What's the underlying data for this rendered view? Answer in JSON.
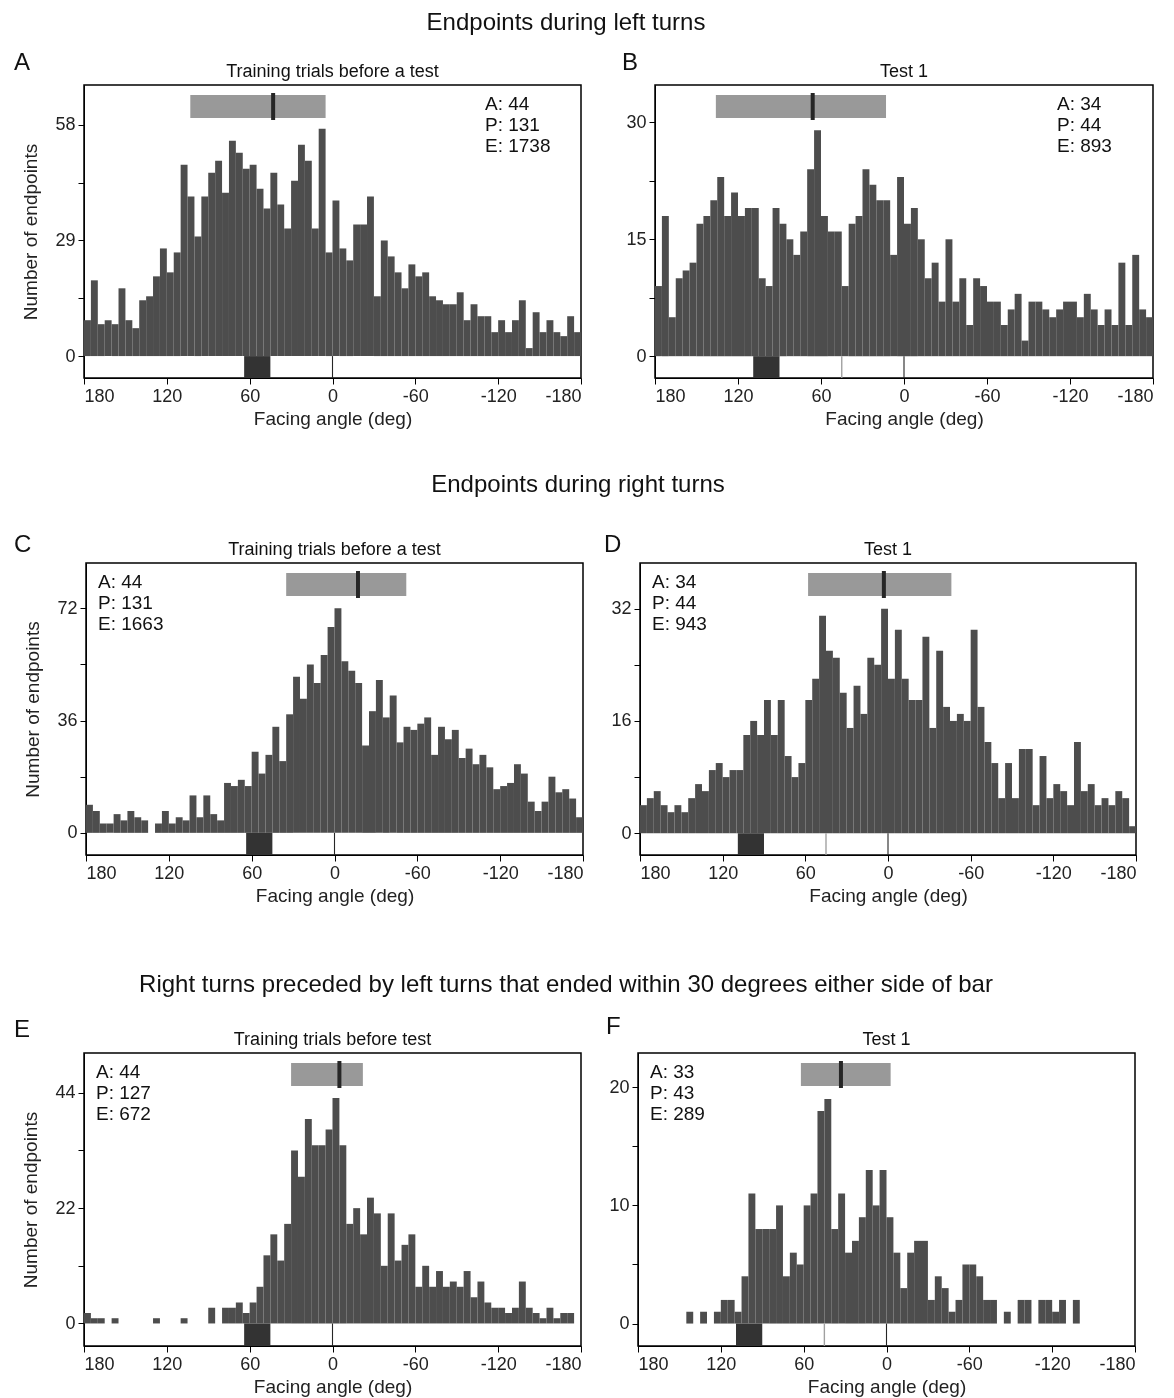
{
  "chart_data": [
    {
      "type": "histogram",
      "title": "Training trials before a test",
      "xlabel": "Facing angle (deg)",
      "ylabel": "Number of endpoints",
      "color": "#4d4d4d",
      "xlim": [
        180,
        -180
      ],
      "xticks": [
        180,
        120,
        60,
        0,
        -60,
        -120,
        -180
      ],
      "ylim": [
        -5.5,
        68
      ],
      "yticks": [
        0,
        {
          "value": 14.5,
          "label": null
        },
        29,
        {
          "value": 43.5,
          "label": null
        },
        58
      ],
      "bins": [
        180,
        175,
        170,
        165,
        160,
        155,
        150,
        145,
        140,
        135,
        130,
        125,
        120,
        115,
        110,
        105,
        100,
        95,
        90,
        85,
        80,
        75,
        70,
        65,
        60,
        55,
        50,
        45,
        40,
        35,
        30,
        25,
        20,
        15,
        10,
        5,
        0,
        -5,
        -10,
        -15,
        -20,
        -25,
        -30,
        -35,
        -40,
        -45,
        -50,
        -55,
        -60,
        -65,
        -70,
        -75,
        -80,
        -85,
        -90,
        -95,
        -100,
        -105,
        -110,
        -115,
        -120,
        -125,
        -130,
        -135,
        -140,
        -145,
        -150,
        -155,
        -160,
        -165,
        -170,
        -175,
        -180
      ],
      "values": [
        9,
        19,
        8,
        9,
        8,
        17,
        9,
        7,
        14,
        15,
        20,
        27,
        21,
        26,
        48,
        40,
        30,
        40,
        46,
        49,
        41,
        54,
        51,
        47,
        48,
        42,
        37,
        46,
        38,
        32,
        44,
        53,
        49,
        32,
        57,
        26,
        39,
        27,
        24,
        33,
        33,
        40,
        15,
        29,
        25,
        21,
        17,
        23,
        20,
        21,
        15,
        14,
        13,
        13,
        16,
        9,
        13,
        10,
        10,
        6,
        9,
        6,
        9,
        14,
        2,
        11,
        6,
        9,
        6,
        5,
        10,
        6
      ],
      "bands": [
        {
          "axis": "x",
          "from": 103,
          "to": 5,
          "color": "#999999"
        },
        {
          "axis": "x",
          "from": 64,
          "to": 45,
          "color": "#333333"
        },
        {
          "axis": "x",
          "from": 0.4,
          "to": -0.4,
          "color": "#262626"
        }
      ],
      "ref_lines": [
        {
          "axis": "x",
          "value": 43,
          "color": "#262626"
        }
      ],
      "annotations": [
        "A",
        "A: 44",
        "P: 131",
        "E: 1738",
        "Endpoints during left turns"
      ]
    },
    {
      "type": "histogram",
      "title": "Test 1",
      "xlabel": "Facing angle (deg)",
      "color": "#4d4d4d",
      "xlim": [
        180,
        -180
      ],
      "xticks": [
        180,
        120,
        60,
        0,
        -60,
        -120,
        -180
      ],
      "ylim": [
        -2.8,
        34.8
      ],
      "yticks": [
        0,
        {
          "value": 7.5,
          "label": null
        },
        15,
        {
          "value": 22.5,
          "label": null
        },
        30
      ],
      "bins": [
        180,
        175,
        170,
        165,
        160,
        155,
        150,
        145,
        140,
        135,
        130,
        125,
        120,
        115,
        110,
        105,
        100,
        95,
        90,
        85,
        80,
        75,
        70,
        65,
        60,
        55,
        50,
        45,
        40,
        35,
        30,
        25,
        20,
        15,
        10,
        5,
        0,
        -5,
        -10,
        -15,
        -20,
        -25,
        -30,
        -35,
        -40,
        -45,
        -50,
        -55,
        -60,
        -65,
        -70,
        -75,
        -80,
        -85,
        -90,
        -95,
        -100,
        -105,
        -110,
        -115,
        -120,
        -125,
        -130,
        -135,
        -140,
        -145,
        -150,
        -155,
        -160,
        -165,
        -170,
        -175,
        -180
      ],
      "values": [
        9,
        18,
        5,
        10,
        11,
        12,
        17,
        18,
        20,
        23,
        18,
        21,
        18,
        19,
        19,
        10,
        9,
        19,
        17,
        15,
        13,
        16,
        24,
        29,
        18,
        16,
        16,
        9,
        17,
        18,
        24,
        22,
        20,
        20,
        13,
        23,
        17,
        19,
        15,
        10,
        12,
        7,
        15,
        7,
        10,
        4,
        10,
        9,
        7,
        7,
        4,
        6,
        8,
        2,
        7,
        7,
        6,
        5,
        6,
        7,
        7,
        5,
        8,
        6,
        4,
        6,
        4,
        12,
        4,
        13,
        6,
        5
      ],
      "bands": [
        {
          "axis": "x",
          "from": 136,
          "to": 13,
          "color": "#999999"
        },
        {
          "axis": "x",
          "from": 109,
          "to": 90,
          "color": "#333333"
        },
        {
          "axis": "x",
          "from": 45.5,
          "to": 44.5,
          "color": "#a0a0a0"
        },
        {
          "axis": "x",
          "from": 0.4,
          "to": -0.4,
          "color": "#262626"
        }
      ],
      "ref_lines": [
        {
          "axis": "x",
          "value": 66,
          "color": "#262626"
        }
      ],
      "annotations": [
        "B",
        "A: 34",
        "P: 44",
        "E: 893"
      ]
    },
    {
      "type": "histogram",
      "title": "Training trials before a test",
      "xlabel": "Facing angle (deg)",
      "ylabel": "Number of endpoints",
      "color": "#4d4d4d",
      "xlim": [
        180,
        -180
      ],
      "xticks": [
        180,
        120,
        60,
        0,
        -60,
        -120,
        -180
      ],
      "ylim": [
        -7.1,
        86.5
      ],
      "yticks": [
        0,
        {
          "value": 18,
          "label": null
        },
        36,
        {
          "value": 54,
          "label": null
        },
        72
      ],
      "bins": [
        180,
        175,
        170,
        165,
        160,
        155,
        150,
        145,
        140,
        135,
        130,
        125,
        120,
        115,
        110,
        105,
        100,
        95,
        90,
        85,
        80,
        75,
        70,
        65,
        60,
        55,
        50,
        45,
        40,
        35,
        30,
        25,
        20,
        15,
        10,
        5,
        0,
        -5,
        -10,
        -15,
        -20,
        -25,
        -30,
        -35,
        -40,
        -45,
        -50,
        -55,
        -60,
        -65,
        -70,
        -75,
        -80,
        -85,
        -90,
        -95,
        -100,
        -105,
        -110,
        -115,
        -120,
        -125,
        -130,
        -135,
        -140,
        -145,
        -150,
        -155,
        -160,
        -165,
        -170,
        -175,
        -180
      ],
      "values": [
        9,
        7,
        3,
        3,
        6,
        4,
        7,
        5,
        4,
        0,
        3,
        7,
        3,
        5,
        4,
        12,
        5,
        12,
        6,
        4,
        16,
        15,
        17,
        15,
        26,
        19,
        25,
        34,
        23,
        38,
        50,
        43,
        54,
        48,
        57,
        66,
        72,
        55,
        52,
        48,
        28,
        39,
        49,
        37,
        44,
        29,
        34,
        33,
        35,
        37,
        25,
        34,
        30,
        33,
        24,
        27,
        22,
        25,
        21,
        14,
        15,
        16,
        22,
        19,
        10,
        7,
        10,
        18,
        13,
        14,
        11,
        5
      ],
      "bands": [
        {
          "axis": "x",
          "from": 35,
          "to": -52,
          "color": "#999999"
        },
        {
          "axis": "x",
          "from": 64,
          "to": 45,
          "color": "#333333"
        },
        {
          "axis": "x",
          "from": 0.4,
          "to": -0.4,
          "color": "#262626"
        }
      ],
      "ref_lines": [
        {
          "axis": "x",
          "value": -17,
          "color": "#262626"
        }
      ],
      "annotations": [
        "C",
        "A: 44",
        "P: 131",
        "E: 1663",
        "Endpoints during right turns"
      ]
    },
    {
      "type": "histogram",
      "title": "Test 1",
      "xlabel": "Facing angle (deg)",
      "color": "#4d4d4d",
      "xlim": [
        180,
        -180
      ],
      "xticks": [
        180,
        120,
        60,
        0,
        -60,
        -120,
        -180
      ],
      "ylim": [
        -3.1,
        38.5
      ],
      "yticks": [
        0,
        {
          "value": 8,
          "label": null
        },
        16,
        {
          "value": 24,
          "label": null
        },
        32
      ],
      "bins": [
        180,
        175,
        170,
        165,
        160,
        155,
        150,
        145,
        140,
        135,
        130,
        125,
        120,
        115,
        110,
        105,
        100,
        95,
        90,
        85,
        80,
        75,
        70,
        65,
        60,
        55,
        50,
        45,
        40,
        35,
        30,
        25,
        20,
        15,
        10,
        5,
        0,
        -5,
        -10,
        -15,
        -20,
        -25,
        -30,
        -35,
        -40,
        -45,
        -50,
        -55,
        -60,
        -65,
        -70,
        -75,
        -80,
        -85,
        -90,
        -95,
        -100,
        -105,
        -110,
        -115,
        -120,
        -125,
        -130,
        -135,
        -140,
        -145,
        -150,
        -155,
        -160,
        -165,
        -170,
        -175,
        -180
      ],
      "values": [
        4,
        5,
        6,
        4,
        3,
        4,
        3,
        5,
        7,
        6,
        9,
        10,
        8,
        9,
        9,
        14,
        16,
        14,
        19,
        14,
        19,
        11,
        8,
        10,
        19,
        22,
        31,
        26,
        25,
        20,
        15,
        21,
        17,
        25,
        24,
        32,
        22,
        29,
        22,
        19,
        19,
        28,
        15,
        26,
        18,
        16,
        17,
        16,
        29,
        18,
        13,
        10,
        5,
        10,
        5,
        12,
        12,
        4,
        11,
        5,
        7,
        6,
        4,
        13,
        6,
        7,
        4,
        5,
        4,
        6,
        5,
        1
      ],
      "bands": [
        {
          "axis": "x",
          "from": 58,
          "to": -46,
          "color": "#999999"
        },
        {
          "axis": "x",
          "from": 109,
          "to": 90,
          "color": "#333333"
        },
        {
          "axis": "x",
          "from": 45.5,
          "to": 44.5,
          "color": "#a0a0a0"
        },
        {
          "axis": "x",
          "from": 0.4,
          "to": -0.4,
          "color": "#262626"
        }
      ],
      "ref_lines": [
        {
          "axis": "x",
          "value": 3,
          "color": "#262626"
        }
      ],
      "annotations": [
        "D",
        "A: 34",
        "P: 44",
        "E: 943"
      ]
    },
    {
      "type": "histogram",
      "title": "Training trials before test",
      "xlabel": "Facing angle (deg)",
      "ylabel": "Number of endpoints",
      "color": "#4d4d4d",
      "xlim": [
        180,
        -180
      ],
      "xticks": [
        180,
        120,
        60,
        0,
        -60,
        -120,
        -180
      ],
      "ylim": [
        -4.3,
        51.6
      ],
      "yticks": [
        0,
        {
          "value": 11,
          "label": null
        },
        22,
        {
          "value": 33,
          "label": null
        },
        44
      ],
      "bins": [
        180,
        175,
        170,
        165,
        160,
        155,
        150,
        145,
        140,
        135,
        130,
        125,
        120,
        115,
        110,
        105,
        100,
        95,
        90,
        85,
        80,
        75,
        70,
        65,
        60,
        55,
        50,
        45,
        40,
        35,
        30,
        25,
        20,
        15,
        10,
        5,
        0,
        -5,
        -10,
        -15,
        -20,
        -25,
        -30,
        -35,
        -40,
        -45,
        -50,
        -55,
        -60,
        -65,
        -70,
        -75,
        -80,
        -85,
        -90,
        -95,
        -100,
        -105,
        -110,
        -115,
        -120,
        -125,
        -130,
        -135,
        -140,
        -145,
        -150,
        -155,
        -160,
        -165,
        -170,
        -175,
        -180
      ],
      "values": [
        2,
        1,
        1,
        0,
        1,
        0,
        0,
        0,
        0,
        0,
        1,
        0,
        0,
        0,
        1,
        0,
        0,
        0,
        3,
        0,
        3,
        3,
        4,
        2,
        4,
        7,
        13,
        17,
        12,
        19,
        33,
        28,
        39,
        34,
        34,
        37,
        43,
        34,
        19,
        22,
        17,
        24,
        21,
        11,
        21,
        12,
        15,
        17,
        7,
        11,
        7,
        10,
        7,
        8,
        7,
        10,
        5,
        8,
        4,
        3,
        3,
        2,
        3,
        8,
        3,
        2,
        1,
        3,
        1,
        2,
        2,
        0
      ],
      "bands": [
        {
          "axis": "x",
          "from": 30,
          "to": -22,
          "color": "#999999"
        },
        {
          "axis": "x",
          "from": 64,
          "to": 45,
          "color": "#333333"
        },
        {
          "axis": "x",
          "from": 0.4,
          "to": -0.4,
          "color": "#262626"
        }
      ],
      "ref_lines": [
        {
          "axis": "x",
          "value": -5,
          "color": "#262626"
        }
      ],
      "annotations": [
        "E",
        "A: 44",
        "P: 127",
        "E: 672",
        "Right turns preceded by left turns that ended within 30 degrees either side of bar"
      ]
    },
    {
      "type": "histogram",
      "title": "Test 1",
      "xlabel": "Facing angle (deg)",
      "color": "#4d4d4d",
      "xlim": [
        180,
        -180
      ],
      "xticks": [
        180,
        120,
        60,
        0,
        -60,
        -120,
        -180
      ],
      "ylim": [
        -1.9,
        22.9
      ],
      "yticks": [
        0,
        {
          "value": 5,
          "label": null
        },
        10,
        {
          "value": 15,
          "label": null
        },
        20
      ],
      "bins": [
        180,
        175,
        170,
        165,
        160,
        155,
        150,
        145,
        140,
        135,
        130,
        125,
        120,
        115,
        110,
        105,
        100,
        95,
        90,
        85,
        80,
        75,
        70,
        65,
        60,
        55,
        50,
        45,
        40,
        35,
        30,
        25,
        20,
        15,
        10,
        5,
        0,
        -5,
        -10,
        -15,
        -20,
        -25,
        -30,
        -35,
        -40,
        -45,
        -50,
        -55,
        -60,
        -65,
        -70,
        -75,
        -80,
        -85,
        -90,
        -95,
        -100,
        -105,
        -110,
        -115,
        -120,
        -125,
        -130,
        -135,
        -140,
        -145,
        -150,
        -155,
        -160,
        -165,
        -170,
        -175,
        -180
      ],
      "values": [
        0,
        0,
        0,
        0,
        0,
        0,
        0,
        1,
        0,
        1,
        0,
        1,
        2,
        2,
        1,
        4,
        11,
        8,
        8,
        8,
        10,
        4,
        6,
        5,
        10,
        11,
        18,
        19,
        8,
        11,
        6,
        7,
        9,
        13,
        10,
        13,
        9,
        6,
        3,
        6,
        7,
        7,
        2,
        4,
        3,
        1,
        2,
        5,
        5,
        4,
        2,
        2,
        0,
        1,
        0,
        2,
        2,
        0,
        2,
        2,
        1,
        2,
        0,
        2,
        0,
        0,
        0,
        0,
        0,
        0,
        0,
        0
      ],
      "bands": [
        {
          "axis": "x",
          "from": 62,
          "to": -3,
          "color": "#999999"
        },
        {
          "axis": "x",
          "from": 109,
          "to": 90,
          "color": "#333333"
        },
        {
          "axis": "x",
          "from": 45.5,
          "to": 44.5,
          "color": "#a0a0a0"
        },
        {
          "axis": "x",
          "from": 0.4,
          "to": -0.4,
          "color": "#262626"
        }
      ],
      "ref_lines": [
        {
          "axis": "x",
          "value": 33,
          "color": "#262626"
        }
      ],
      "annotations": [
        "F",
        "A: 33",
        "P: 43",
        "E: 289"
      ]
    }
  ]
}
